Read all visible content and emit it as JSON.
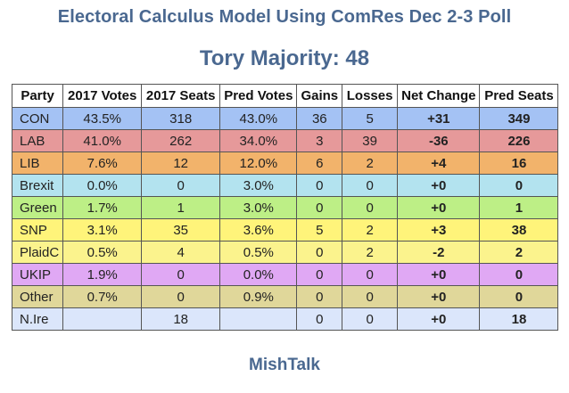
{
  "title": "Electoral Calculus Model Using ComRes Dec 2-3 Poll",
  "subtitle": "Tory Majority: 48",
  "footer": "MishTalk",
  "chart_data": {
    "type": "table",
    "columns": [
      "Party",
      "2017 Votes",
      "2017 Seats",
      "Pred Votes",
      "Gains",
      "Losses",
      "Net Change",
      "Pred Seats"
    ],
    "rows": [
      {
        "party": "CON",
        "votes2017": "43.5%",
        "seats2017": "318",
        "predVotes": "43.0%",
        "gains": "36",
        "losses": "5",
        "net": "+31",
        "predSeats": "349",
        "color": "#a4c2f4"
      },
      {
        "party": "LAB",
        "votes2017": "41.0%",
        "seats2017": "262",
        "predVotes": "34.0%",
        "gains": "3",
        "losses": "39",
        "net": "-36",
        "predSeats": "226",
        "color": "#e6999a"
      },
      {
        "party": "LIB",
        "votes2017": "7.6%",
        "seats2017": "12",
        "predVotes": "12.0%",
        "gains": "6",
        "losses": "2",
        "net": "+4",
        "predSeats": "16",
        "color": "#f2b36b"
      },
      {
        "party": "Brexit",
        "votes2017": "0.0%",
        "seats2017": "0",
        "predVotes": "3.0%",
        "gains": "0",
        "losses": "0",
        "net": "+0",
        "predSeats": "0",
        "color": "#b3e3ef"
      },
      {
        "party": "Green",
        "votes2017": "1.7%",
        "seats2017": "1",
        "predVotes": "3.0%",
        "gains": "0",
        "losses": "0",
        "net": "+0",
        "predSeats": "1",
        "color": "#bdef86"
      },
      {
        "party": "SNP",
        "votes2017": "3.1%",
        "seats2017": "35",
        "predVotes": "3.6%",
        "gains": "5",
        "losses": "2",
        "net": "+3",
        "predSeats": "38",
        "color": "#fff47a"
      },
      {
        "party": "PlaidC",
        "votes2017": "0.5%",
        "seats2017": "4",
        "predVotes": "0.5%",
        "gains": "0",
        "losses": "2",
        "net": "-2",
        "predSeats": "2",
        "color": "#fbf38d"
      },
      {
        "party": "UKIP",
        "votes2017": "1.9%",
        "seats2017": "0",
        "predVotes": "0.0%",
        "gains": "0",
        "losses": "0",
        "net": "+0",
        "predSeats": "0",
        "color": "#e0a8f4"
      },
      {
        "party": "Other",
        "votes2017": "0.7%",
        "seats2017": "0",
        "predVotes": "0.9%",
        "gains": "0",
        "losses": "0",
        "net": "+0",
        "predSeats": "0",
        "color": "#e0d79a"
      },
      {
        "party": "N.Ire",
        "votes2017": "",
        "seats2017": "18",
        "predVotes": "",
        "gains": "0",
        "losses": "0",
        "net": "+0",
        "predSeats": "18",
        "color": "#dbe6fb"
      }
    ]
  }
}
